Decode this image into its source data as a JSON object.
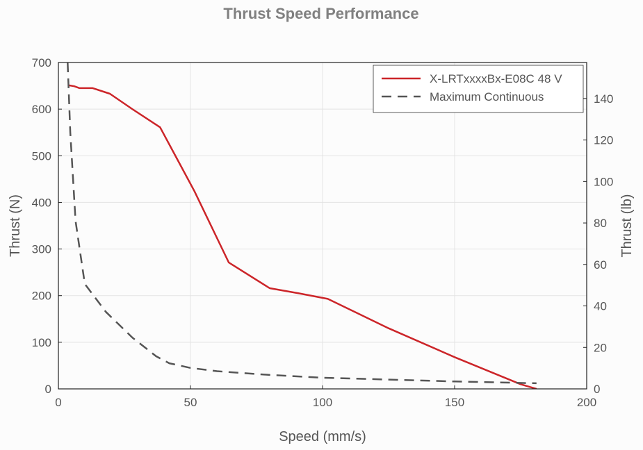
{
  "chart_data": {
    "type": "line",
    "title": "Thrust Speed Performance",
    "xlabel": "Speed (mm/s)",
    "ylabel": "Thrust (N)",
    "y2label": "Thrust (lb)",
    "xlim": [
      0,
      200
    ],
    "ylim": [
      0,
      700
    ],
    "y2lim": [
      0,
      157.37
    ],
    "x_ticks": [
      0,
      50,
      100,
      150,
      200
    ],
    "y_ticks": [
      0,
      100,
      200,
      300,
      400,
      500,
      600,
      700
    ],
    "y2_ticks": [
      0,
      20,
      40,
      60,
      80,
      100,
      120,
      140
    ],
    "grid": true,
    "legend_position": "top-right",
    "series": [
      {
        "name": "X-LRTxxxxBx-E08C 48 V",
        "color": "#cc2529",
        "style": "solid",
        "x": [
          4,
          6,
          8,
          13,
          19.5,
          28,
          38.5,
          51.5,
          64.5,
          80,
          91,
          102,
          125,
          150,
          175,
          181
        ],
        "y": [
          651,
          649,
          645,
          645,
          633,
          600,
          561,
          424,
          271,
          216,
          205,
          193,
          130,
          68,
          10,
          0
        ]
      },
      {
        "name": "Maximum Continuous",
        "color": "#555555",
        "style": "dashed",
        "x": [
          3.5,
          4.5,
          6.5,
          10,
          18,
          28,
          37,
          42,
          50,
          60,
          80,
          100,
          125,
          150,
          181
        ],
        "y": [
          700,
          550,
          360,
          225,
          165,
          110,
          70,
          55,
          45,
          38,
          30,
          24,
          20,
          16,
          12
        ]
      }
    ]
  }
}
